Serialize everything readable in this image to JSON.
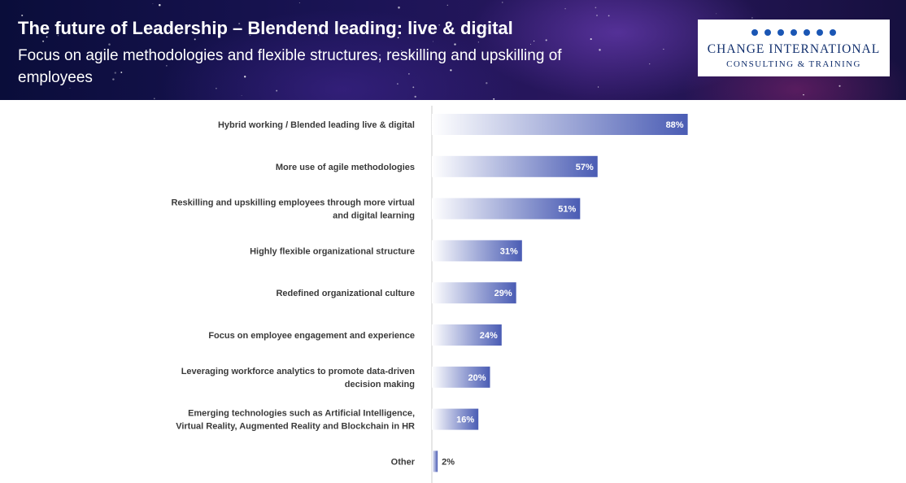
{
  "header": {
    "title": "The future of Leadership – Blendend leading: live & digital",
    "subtitle": "Focus on agile methodologies and flexible structures, reskilling and upskilling of employees"
  },
  "logo": {
    "name": "CHANGE INTERNATIONAL",
    "tagline": "CONSULTING & TRAINING"
  },
  "chart_data": {
    "type": "bar",
    "orientation": "horizontal",
    "title": "",
    "xlabel": "",
    "ylabel": "",
    "xlim": [
      0,
      100
    ],
    "grid": false,
    "legend": "none",
    "categories": [
      [
        "Hybrid working / Blended leading live & digital"
      ],
      [
        "More use of agile methodologies"
      ],
      [
        "Reskilling and upskilling employees through more virtual",
        "and digital learning"
      ],
      [
        "Highly flexible organizational structure"
      ],
      [
        "Redefined organizational culture"
      ],
      [
        "Focus on employee engagement and experience"
      ],
      [
        "Leveraging workforce analytics to promote data-driven",
        "decision making"
      ],
      [
        "Emerging technologies such as Artificial Intelligence,",
        "Virtual Reality, Augmented Reality and Blockchain in HR"
      ],
      [
        "Other"
      ]
    ],
    "values": [
      88,
      57,
      51,
      31,
      29,
      24,
      20,
      16,
      2
    ],
    "value_labels": [
      "88%",
      "57%",
      "51%",
      "31%",
      "29%",
      "24%",
      "20%",
      "16%",
      "2%"
    ],
    "colors": {
      "bar_start": "#ffffff",
      "bar_end": "#4a5cb4",
      "axis": "#cccccc",
      "label_inside": "#ffffff",
      "label_outside": "#3a3a3a"
    }
  }
}
